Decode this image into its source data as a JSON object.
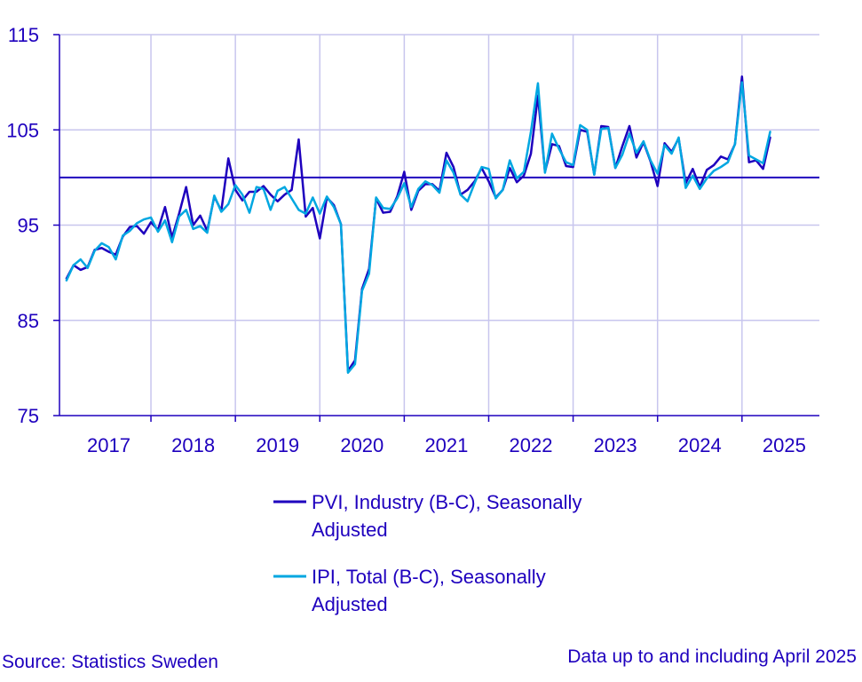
{
  "chart_data": {
    "type": "line",
    "title": "",
    "xlabel": "",
    "ylabel": "",
    "ylim": [
      75,
      115
    ],
    "yticks": [
      75,
      85,
      95,
      105,
      115
    ],
    "reference_line": 100,
    "x_start": "2016-12",
    "x_end": "2025-12",
    "year_labels": [
      "2017",
      "2018",
      "2019",
      "2020",
      "2021",
      "2022",
      "2023",
      "2024",
      "2025"
    ],
    "grid": true,
    "series": [
      {
        "name": "PVI, Industry (B-C), Seasonally Adjusted",
        "legend_line1": "PVI, Industry (B-C), Seasonally",
        "legend_line2": "Adjusted",
        "color": "#1e00be",
        "values": [
          89.4,
          90.8,
          90.3,
          90.6,
          92.4,
          92.6,
          92.2,
          91.9,
          93.8,
          94.8,
          94.9,
          94.1,
          95.3,
          94.5,
          96.9,
          93.7,
          96.2,
          99.0,
          95.0,
          96.0,
          94.4,
          98.0,
          96.5,
          102.0,
          98.7,
          97.6,
          98.5,
          98.5,
          99.1,
          98.2,
          97.5,
          98.2,
          98.7,
          104.0,
          95.9,
          96.8,
          93.6,
          97.9,
          97.1,
          95.1,
          79.7,
          80.8,
          88.3,
          90.4,
          97.8,
          96.3,
          96.4,
          98.0,
          100.6,
          96.6,
          98.6,
          99.3,
          99.3,
          98.6,
          102.6,
          101.1,
          98.2,
          98.7,
          99.6,
          101.0,
          99.6,
          97.9,
          98.7,
          101.0,
          99.5,
          100.2,
          102.5,
          108.6,
          100.6,
          103.5,
          103.3,
          101.2,
          101.1,
          105.0,
          104.8,
          100.3,
          105.4,
          105.3,
          101.0,
          103.3,
          105.4,
          102.1,
          103.7,
          101.7,
          99.1,
          103.6,
          102.7,
          104.1,
          99.4,
          100.9,
          99.0,
          100.8,
          101.3,
          102.2,
          101.9,
          103.5,
          110.6,
          101.6,
          101.8,
          100.9,
          104.2
        ]
      },
      {
        "name": "IPI, Total (B-C), Seasonally Adjusted",
        "legend_line1": "IPI, Total (B-C), Seasonally",
        "legend_line2": "Adjusted",
        "color": "#00a7e1",
        "values": [
          89.2,
          90.8,
          91.4,
          90.5,
          92.3,
          93.1,
          92.7,
          91.4,
          93.9,
          94.4,
          95.2,
          95.6,
          95.8,
          94.3,
          95.5,
          93.2,
          95.9,
          96.6,
          94.6,
          94.9,
          94.2,
          98.1,
          96.4,
          97.2,
          99.2,
          98.2,
          96.3,
          99.0,
          98.8,
          96.6,
          98.6,
          99.0,
          97.8,
          96.6,
          96.2,
          97.9,
          96.2,
          98.0,
          96.9,
          95.1,
          79.5,
          80.4,
          88.1,
          89.9,
          97.9,
          96.8,
          96.7,
          97.8,
          99.4,
          96.9,
          98.8,
          99.6,
          99.2,
          98.4,
          101.8,
          100.5,
          98.2,
          97.5,
          99.4,
          101.1,
          100.9,
          97.8,
          98.7,
          101.8,
          99.9,
          100.6,
          104.8,
          109.9,
          100.5,
          104.6,
          103.0,
          101.6,
          101.3,
          105.5,
          105.0,
          100.3,
          105.1,
          105.2,
          101.0,
          102.4,
          104.6,
          102.6,
          103.8,
          101.8,
          100.4,
          103.4,
          102.5,
          104.2,
          98.9,
          100.2,
          98.8,
          99.9,
          100.7,
          101.1,
          101.6,
          103.5,
          110.0,
          102.3,
          101.9,
          101.5,
          104.8
        ]
      }
    ]
  },
  "footer": {
    "source": "Source: Statistics Sweden",
    "note": "Data up to and including April 2025"
  }
}
